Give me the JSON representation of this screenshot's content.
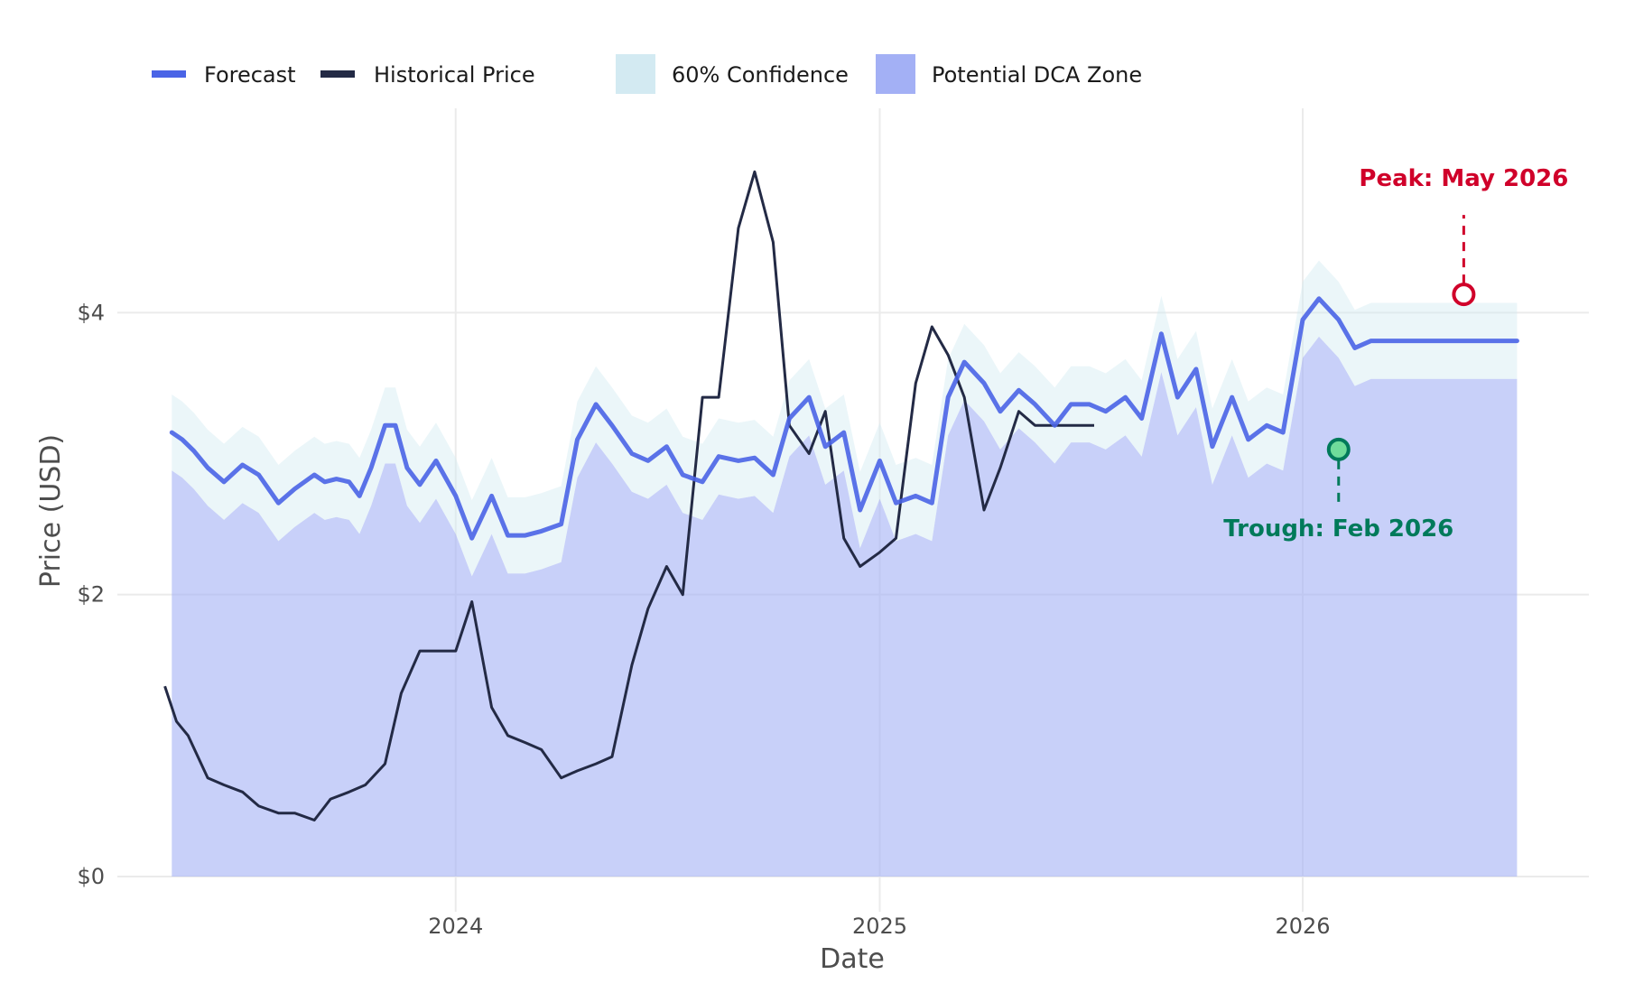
{
  "chart_data": {
    "type": "line",
    "title": "",
    "xlabel": "Date",
    "ylabel": "Price (USD)",
    "x_ticks": [
      "2024",
      "2025",
      "2026"
    ],
    "y_ticks": [
      "$0",
      "$2",
      "$4"
    ],
    "y_tick_values": [
      0,
      2,
      4
    ],
    "ylim": [
      -0.25,
      5.45
    ],
    "xlim": [
      "2023-03-15",
      "2026-09-05"
    ],
    "grid": true,
    "legend_position": "top-left",
    "legend": {
      "forecast": "Forecast",
      "historical": "Historical Price",
      "confidence": "60% Confidence",
      "dca": "Potential DCA Zone"
    },
    "colors": {
      "forecast": "#4a64e6",
      "historical": "#232a45",
      "confidence": "#d3eaf2",
      "dca": "#a3b0f5",
      "peak": "#d0002a",
      "trough": "#007a5a",
      "grid": "#ebebeb"
    },
    "forecast_band_width": 0.27,
    "series": [
      {
        "name": "Forecast",
        "x": [
          "2023-05-01",
          "2023-05-10",
          "2023-05-20",
          "2023-06-01",
          "2023-06-15",
          "2023-07-01",
          "2023-07-15",
          "2023-08-01",
          "2023-08-15",
          "2023-09-01",
          "2023-09-10",
          "2023-09-20",
          "2023-10-01",
          "2023-10-10",
          "2023-10-20",
          "2023-11-01",
          "2023-11-10",
          "2023-11-20",
          "2023-12-01",
          "2023-12-15",
          "2024-01-01",
          "2024-01-15",
          "2024-02-01",
          "2024-02-15",
          "2024-03-01",
          "2024-03-15",
          "2024-04-01",
          "2024-04-15",
          "2024-05-01",
          "2024-05-15",
          "2024-06-01",
          "2024-06-15",
          "2024-07-01",
          "2024-07-15",
          "2024-08-01",
          "2024-08-15",
          "2024-09-01",
          "2024-09-15",
          "2024-10-01",
          "2024-10-15",
          "2024-11-01",
          "2024-11-15",
          "2024-12-01",
          "2024-12-15",
          "2025-01-01",
          "2025-01-15",
          "2025-02-01",
          "2025-02-15",
          "2025-03-01",
          "2025-03-15",
          "2025-04-01",
          "2025-04-15",
          "2025-05-01",
          "2025-05-15",
          "2025-06-01",
          "2025-06-15",
          "2025-07-01",
          "2025-07-15",
          "2025-08-01",
          "2025-08-15",
          "2025-09-01",
          "2025-09-15",
          "2025-10-01",
          "2025-10-15",
          "2025-11-01",
          "2025-11-15",
          "2025-12-01",
          "2025-12-15",
          "2026-01-01",
          "2026-01-15",
          "2026-02-01",
          "2026-02-15",
          "2026-03-01",
          "2026-03-15",
          "2026-04-01",
          "2026-04-15",
          "2026-05-01",
          "2026-05-15",
          "2026-06-01",
          "2026-06-15",
          "2026-07-01",
          "2026-07-05"
        ],
        "values": [
          3.15,
          3.1,
          3.02,
          2.9,
          2.8,
          2.92,
          2.85,
          2.65,
          2.75,
          2.85,
          2.8,
          2.82,
          2.8,
          2.7,
          2.9,
          3.2,
          3.2,
          2.9,
          2.78,
          2.95,
          2.7,
          2.4,
          2.7,
          2.42,
          2.42,
          2.45,
          2.5,
          3.1,
          3.35,
          3.2,
          3.0,
          2.95,
          3.05,
          2.85,
          2.8,
          2.98,
          2.95,
          2.97,
          2.85,
          3.25,
          3.4,
          3.05,
          3.15,
          2.6,
          2.95,
          2.65,
          2.7,
          2.65,
          3.4,
          3.65,
          3.5,
          3.3,
          3.45,
          3.35,
          3.2,
          3.35,
          3.35,
          3.3,
          3.4,
          3.25,
          3.85,
          3.4,
          3.6,
          3.05,
          3.4,
          3.1,
          3.2,
          3.15,
          3.95,
          4.1,
          3.95,
          3.75,
          3.8,
          3.8,
          3.8,
          3.8,
          3.8,
          3.8,
          3.8,
          3.8,
          3.8,
          3.8
        ]
      },
      {
        "name": "Historical Price",
        "x": [
          "2023-04-25",
          "2023-05-05",
          "2023-05-15",
          "2023-06-01",
          "2023-06-15",
          "2023-07-01",
          "2023-07-15",
          "2023-08-01",
          "2023-08-15",
          "2023-09-01",
          "2023-09-15",
          "2023-10-01",
          "2023-10-15",
          "2023-11-01",
          "2023-11-15",
          "2023-12-01",
          "2023-12-15",
          "2024-01-01",
          "2024-01-15",
          "2024-02-01",
          "2024-02-15",
          "2024-03-01",
          "2024-03-15",
          "2024-04-01",
          "2024-04-15",
          "2024-05-01",
          "2024-05-15",
          "2024-06-01",
          "2024-06-15",
          "2024-07-01",
          "2024-07-15",
          "2024-08-01",
          "2024-08-15",
          "2024-09-01",
          "2024-09-15",
          "2024-10-01",
          "2024-10-15",
          "2024-11-01",
          "2024-11-15",
          "2024-12-01",
          "2024-12-15",
          "2025-01-01",
          "2025-01-15",
          "2025-02-01",
          "2025-02-15",
          "2025-03-01",
          "2025-03-15",
          "2025-04-01",
          "2025-04-15",
          "2025-05-01",
          "2025-05-15",
          "2025-06-01",
          "2025-06-15",
          "2025-07-01",
          "2025-07-05"
        ],
        "values": [
          1.35,
          1.1,
          1.0,
          0.7,
          0.65,
          0.6,
          0.5,
          0.45,
          0.45,
          0.4,
          0.55,
          0.6,
          0.65,
          0.8,
          1.3,
          1.6,
          1.6,
          1.6,
          1.95,
          1.2,
          1.0,
          0.95,
          0.9,
          0.7,
          0.75,
          0.8,
          0.85,
          1.5,
          1.9,
          2.2,
          2.0,
          3.4,
          3.4,
          4.6,
          5.0,
          4.5,
          3.2,
          3.0,
          3.3,
          2.4,
          2.2,
          2.3,
          2.4,
          3.5,
          3.9,
          3.7,
          3.4,
          2.6,
          2.9,
          3.3,
          3.2,
          3.2,
          3.2,
          3.2,
          3.2
        ]
      }
    ],
    "annotations": [
      {
        "label": "Peak: May 2026",
        "x": "2026-05-20",
        "y": 4.13,
        "kind": "peak"
      },
      {
        "label": "Trough: Feb 2026",
        "x": "2026-02-01",
        "y": 3.03,
        "kind": "trough"
      }
    ]
  }
}
